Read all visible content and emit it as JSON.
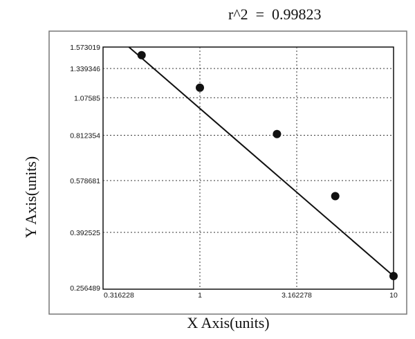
{
  "chart_data": {
    "type": "scatter",
    "annotation": "r^2  =  0.99823",
    "xlabel": "X Axis(units)",
    "ylabel": "Y Axis(units)",
    "x_scale": "log",
    "y_scale": "log",
    "xlim": [
      0.316228,
      10
    ],
    "ylim": [
      0.256489,
      1.573019
    ],
    "x_ticks": [
      {
        "value": 0.316228,
        "label": "0.316228"
      },
      {
        "value": 1,
        "label": "1"
      },
      {
        "value": 3.162278,
        "label": "3.162278"
      },
      {
        "value": 10,
        "label": "10"
      }
    ],
    "y_ticks": [
      {
        "value": 1.573019,
        "label": "1.573019"
      },
      {
        "value": 1.339346,
        "label": "1.339346"
      },
      {
        "value": 1.07585,
        "label": "1.07585"
      },
      {
        "value": 0.812354,
        "label": "0.812354"
      },
      {
        "value": 0.578681,
        "label": "0.578681"
      },
      {
        "value": 0.392525,
        "label": "0.392525"
      },
      {
        "value": 0.256489,
        "label": "0.256489"
      }
    ],
    "grid": true,
    "grid_style": "dotted",
    "points": [
      {
        "x": 0.5,
        "y": 1.48
      },
      {
        "x": 1.0,
        "y": 1.16
      },
      {
        "x": 2.5,
        "y": 0.82
      },
      {
        "x": 5.0,
        "y": 0.515
      },
      {
        "x": 10.0,
        "y": 0.283
      }
    ],
    "fit_line": [
      {
        "x": 0.43,
        "y": 1.573019
      },
      {
        "x": 10.0,
        "y": 0.283
      }
    ],
    "colors": {
      "marker": "#111111",
      "line": "#111111",
      "grid": "#333333",
      "frame_outer": "#777777"
    }
  }
}
